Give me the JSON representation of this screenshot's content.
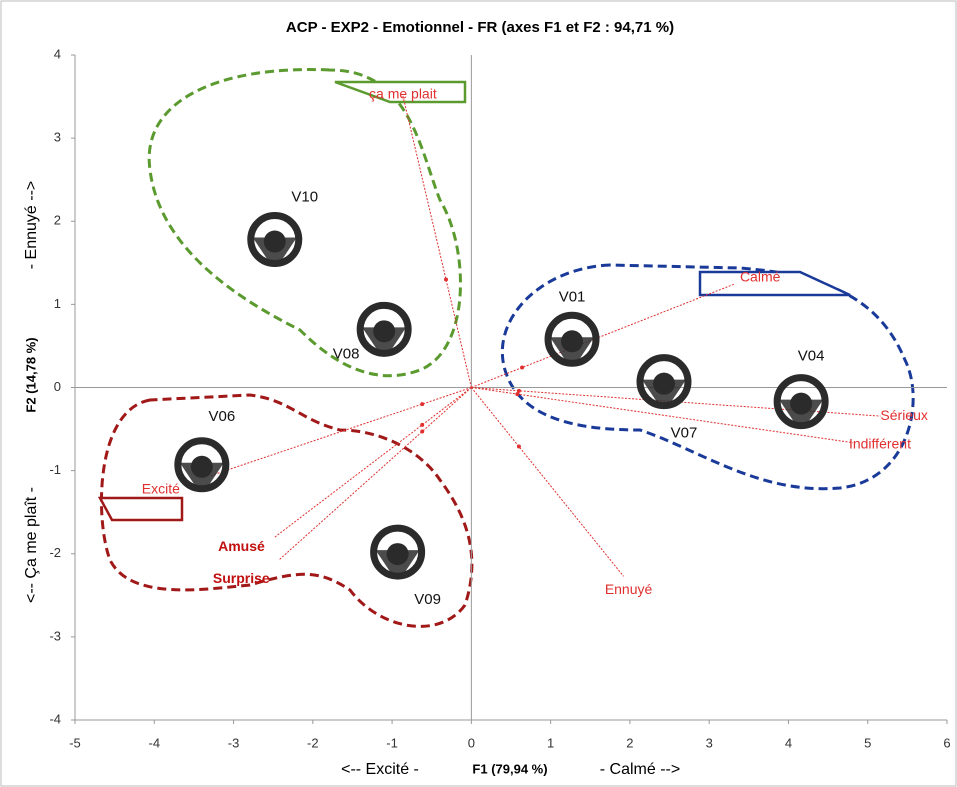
{
  "chart_data": {
    "type": "biplot",
    "title": "ACP - EXP2 - Emotionnel - FR (axes F1 et F2 : 94,71 %)",
    "x_label": {
      "left": "<-- Excité -",
      "main": "F1 (79,94 %)",
      "right": "- Calmé -->"
    },
    "y_label": {
      "bottom": "<-- Ça me plaît -",
      "main": "F2 (14,78 %)",
      "top": "- Ennuyé -->"
    },
    "xlim": [
      -5,
      6
    ],
    "ylim": [
      -4,
      4
    ],
    "xticks": [
      -5,
      -4,
      -3,
      -2,
      -1,
      0,
      1,
      2,
      3,
      4,
      5,
      6
    ],
    "yticks": [
      -4,
      -3,
      -2,
      -1,
      0,
      1,
      2,
      3,
      4
    ],
    "observations": {
      "color": "#2b2b2b",
      "names": [
        "V10",
        "V08",
        "V01",
        "V07",
        "V04",
        "V06",
        "V09"
      ],
      "x": [
        -2.48,
        -1.1,
        1.27,
        2.43,
        4.16,
        -3.4,
        -0.93
      ],
      "y": [
        1.78,
        0.7,
        0.58,
        0.07,
        -0.17,
        -0.93,
        -1.98
      ]
    },
    "variables": {
      "color": "#e03030",
      "names": [
        "ça me plait",
        "Calmé",
        "Sérieux",
        "Indifférent",
        "Ennuyé",
        "Excité",
        "Amusé",
        "Surprise"
      ],
      "x": [
        -0.32,
        0.64,
        0.6,
        0.58,
        0.6,
        -0.62,
        -0.62,
        -0.62
      ],
      "y": [
        1.3,
        0.24,
        -0.04,
        -0.08,
        -0.71,
        -0.2,
        -0.45,
        -0.53
      ]
    }
  }
}
